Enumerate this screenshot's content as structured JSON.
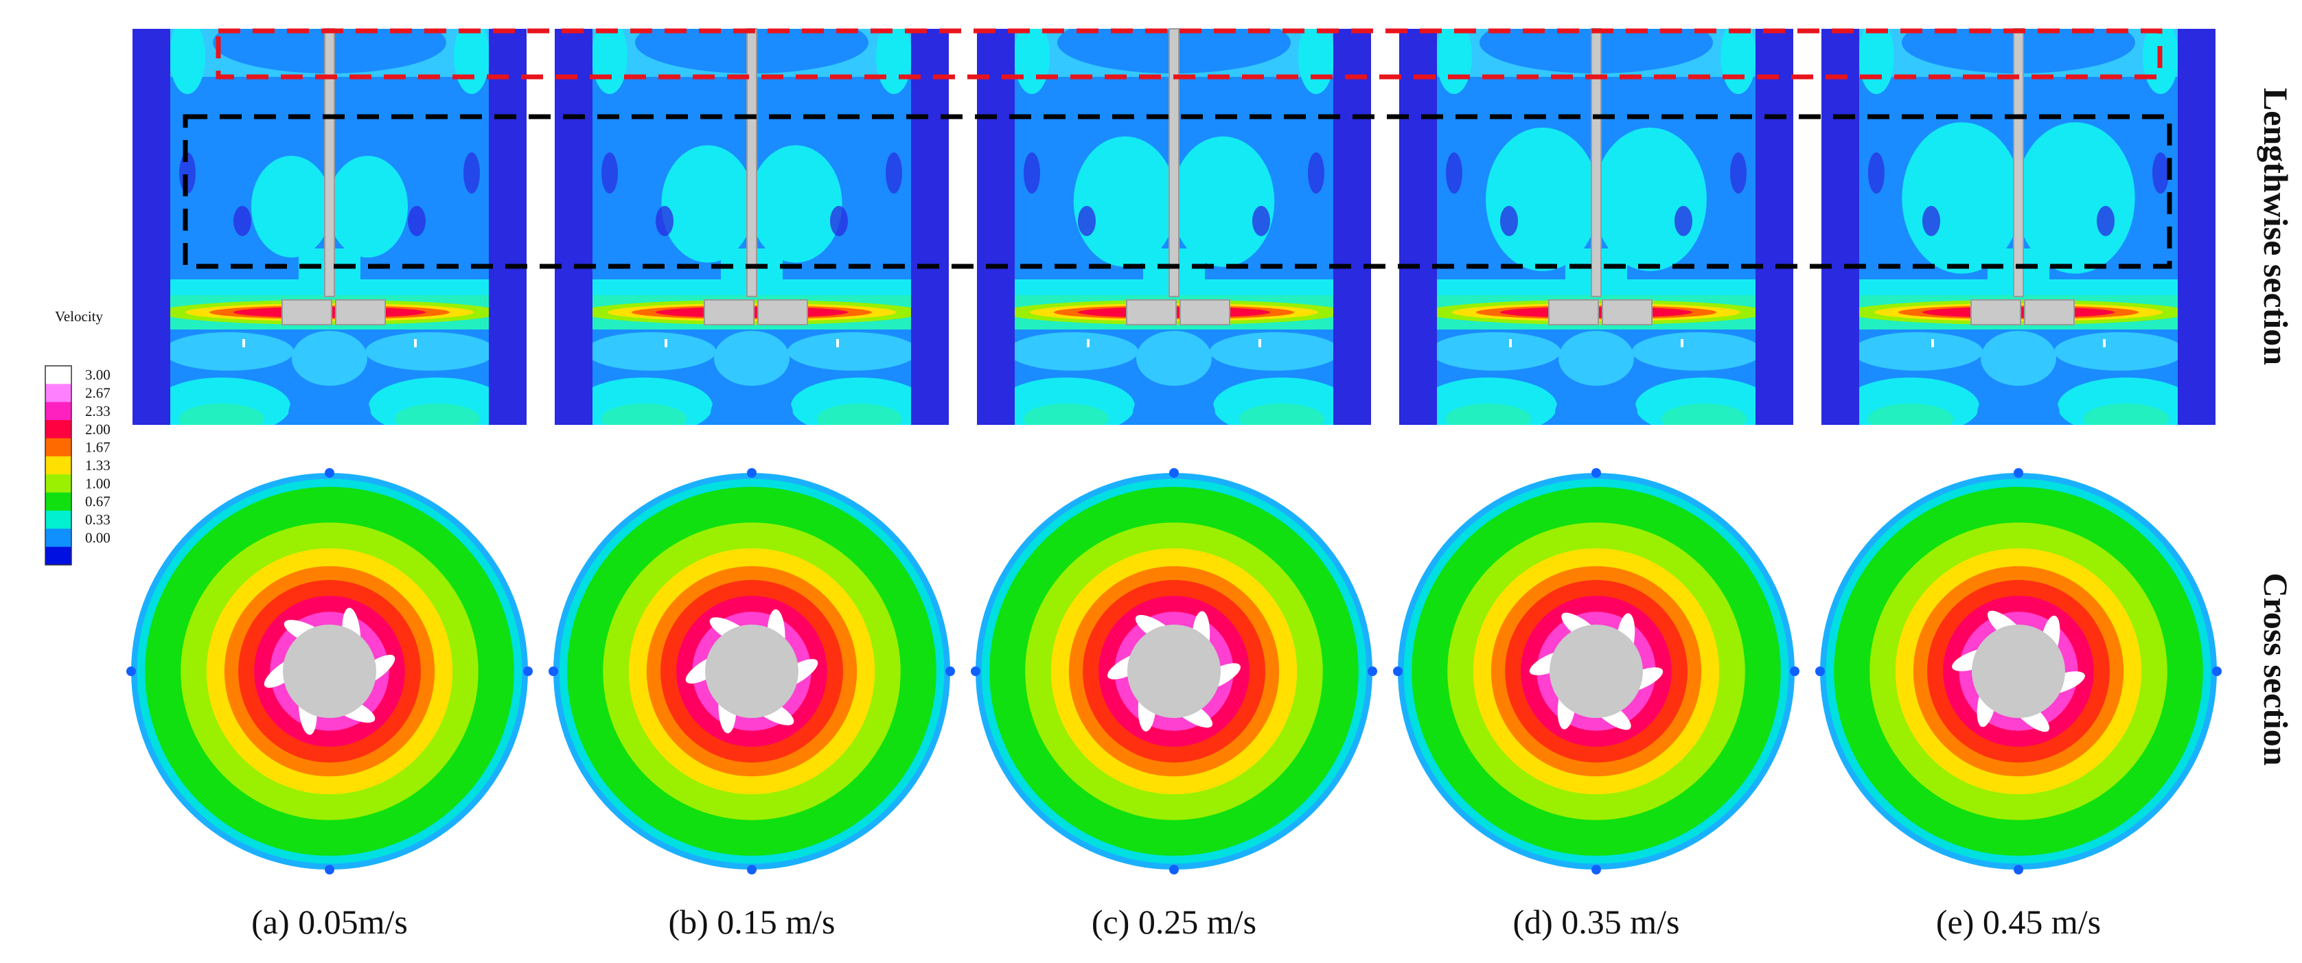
{
  "legend": {
    "title": "Velocity",
    "ticks": [
      "3.00",
      "2.67",
      "2.33",
      "2.00",
      "1.67",
      "1.33",
      "1.00",
      "0.67",
      "0.33",
      "0.00"
    ],
    "colors": [
      "#ffffff",
      "#ff80ff",
      "#ff20c0",
      "#ff0040",
      "#ff6a00",
      "#ffe000",
      "#9af000",
      "#10e010",
      "#00f0d0",
      "#1090ff",
      "#0010e0"
    ]
  },
  "row_labels": {
    "top": "Lengthwise section",
    "bottom": "Cross section"
  },
  "panels": [
    {
      "caption": "(a) 0.05m/s",
      "lobe_scale": 0.78
    },
    {
      "caption": "(b) 0.15 m/s",
      "lobe_scale": 0.9
    },
    {
      "caption": "(c) 0.25 m/s",
      "lobe_scale": 1.0
    },
    {
      "caption": "(d) 0.35 m/s",
      "lobe_scale": 1.1
    },
    {
      "caption": "(e) 0.45 m/s",
      "lobe_scale": 1.16
    }
  ],
  "highlight_boxes": [
    {
      "name": "red-dashed-box",
      "color": "#e8141c"
    },
    {
      "name": "black-dashed-box",
      "color": "#000000"
    }
  ]
}
